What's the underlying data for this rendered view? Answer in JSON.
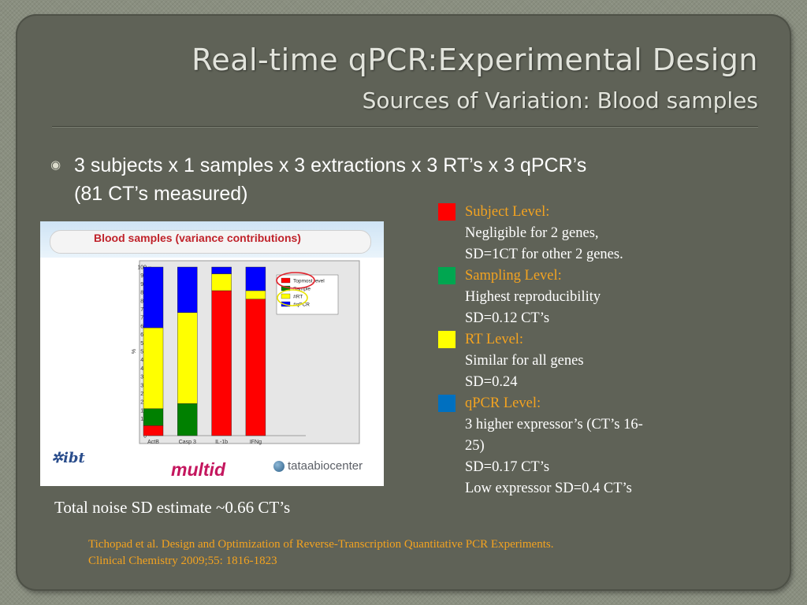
{
  "slide": {
    "title": "Real-time qPCR:Experimental Design",
    "subtitle": "Sources of Variation: Blood samples",
    "bullet_icon": "circle-bullet-icon",
    "bullet_line1": "3 subjects x 1 samples x 3 extractions x 3 RT’s x 3 qPCR’s",
    "bullet_line2": "(81 CT’s measured)",
    "noise_note": "Total noise SD estimate ~0.66 CT’s",
    "citation_line1": "Tichopad  et al. Design and Optimization of Reverse-Transcription Quantitative PCR Experiments.",
    "citation_line2": "Clinical Chemistry  2009;55: 1816-1823"
  },
  "legend": [
    {
      "color": "#ff0000",
      "heading": "Subject Level:",
      "lines": [
        "Negligible for 2 genes,",
        "SD=1CT for other 2 genes."
      ]
    },
    {
      "color": "#00a650",
      "heading": "Sampling Level:",
      "lines": [
        "Highest reproducibility",
        "SD=0.12 CT’s"
      ]
    },
    {
      "color": "#ffff00",
      "heading": "RT Level:",
      "lines": [
        "Similar for all genes",
        "SD=0.24"
      ]
    },
    {
      "color": "#0070c0",
      "heading": "qPCR Level:",
      "lines": [
        "3 higher expressor’s  (CT’s 16-",
        "25)",
        "SD=0.17 CT’s",
        "Low expressor SD=0.4 CT’s"
      ]
    }
  ],
  "figure": {
    "title": "Blood samples (variance contributions)",
    "logos": {
      "ibt": "ibt",
      "multid": "multid",
      "tataa": "tataabiocenter"
    }
  },
  "chart_data": {
    "type": "bar",
    "stacked": true,
    "categories": [
      "ActB",
      "Casp 3",
      "IL-1b",
      "IFNg"
    ],
    "series": [
      {
        "name": "Topmost level",
        "color": "#ff0000",
        "values": [
          6,
          0,
          86,
          81
        ]
      },
      {
        "name": "Sample",
        "color": "#008000",
        "values": [
          10,
          19,
          0,
          0
        ]
      },
      {
        "name": "#RT",
        "color": "#ffff00",
        "values": [
          48,
          54,
          10,
          5
        ]
      },
      {
        "name": "#qPCR",
        "color": "#0000ff",
        "values": [
          36,
          27,
          4,
          14
        ]
      }
    ],
    "ylabel": "%",
    "ylim": [
      0,
      100
    ],
    "yticks": [
      0,
      5,
      10,
      15,
      20,
      25,
      30,
      35,
      40,
      45,
      50,
      55,
      60,
      65,
      70,
      75,
      80,
      85,
      90,
      95,
      100
    ],
    "legend_position": "top-right",
    "annotations": [
      "red-circle-topmost-level",
      "yellow-circle-rt"
    ]
  }
}
